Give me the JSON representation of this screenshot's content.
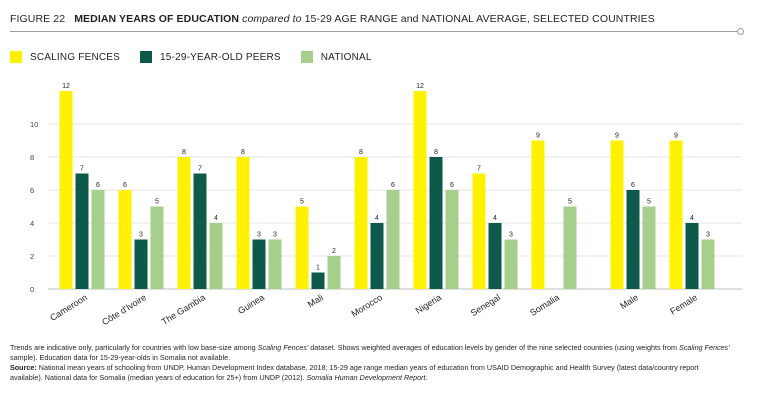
{
  "figure": {
    "number": "FIGURE 22",
    "title_bold": "MEDIAN YEARS OF EDUCATION",
    "title_italic": "compared to",
    "title_rest": "15-29 AGE RANGE and NATIONAL AVERAGE, SELECTED COUNTRIES"
  },
  "legend": [
    {
      "label": "SCALING FENCES",
      "color": "#fff200"
    },
    {
      "label": "15-29-YEAR-OLD PEERS",
      "color": "#0e5a4a"
    },
    {
      "label": "NATIONAL",
      "color": "#a6cf8b"
    }
  ],
  "chart_data": {
    "type": "bar",
    "categories": [
      "Cameroon",
      "Côte d'Ivoire",
      "The Gambia",
      "Guinea",
      "Mali",
      "Morocco",
      "Nigeria",
      "Senegal",
      "Somalia",
      "Male",
      "Female"
    ],
    "series": [
      {
        "name": "SCALING FENCES",
        "color": "#fff200",
        "values": [
          12,
          6,
          8,
          8,
          5,
          8,
          12,
          7,
          9,
          9,
          9
        ]
      },
      {
        "name": "15-29-YEAR-OLD PEERS",
        "color": "#0e5a4a",
        "values": [
          7,
          3,
          7,
          3,
          1,
          4,
          8,
          4,
          null,
          6,
          4
        ]
      },
      {
        "name": "NATIONAL",
        "color": "#a6cf8b",
        "values": [
          6,
          5,
          4,
          3,
          2,
          6,
          6,
          3,
          5,
          5,
          3
        ]
      }
    ],
    "yticks": [
      0,
      2,
      4,
      6,
      8,
      10
    ],
    "ylim": [
      0,
      12
    ],
    "grid": true,
    "data_labels": true,
    "legend_position": "top-left"
  },
  "notes": {
    "line1_a": "Trends are indicative only, particularly for countries with low base-size among ",
    "line1_italic": "Scaling Fences'",
    "line1_b": " dataset. Shows weighted averages of education levels by gender of the nine selected countries (using weights from ",
    "line1_italic2": "Scaling Fences'",
    "line1_c": " sample). Education data for 15-29-year-olds in Somalia not available.",
    "source_label": "Source:",
    "source_text": " National mean years of schooling from UNDP, Human Development Index database, 2018; 15-29 age range median years of education from USAID Demographic and Health Survey (latest data/country report available). National data for Somalia (median years of education for 25+) from UNDP (2012). ",
    "source_italic": "Somalia Human Development Report",
    "source_end": "."
  }
}
